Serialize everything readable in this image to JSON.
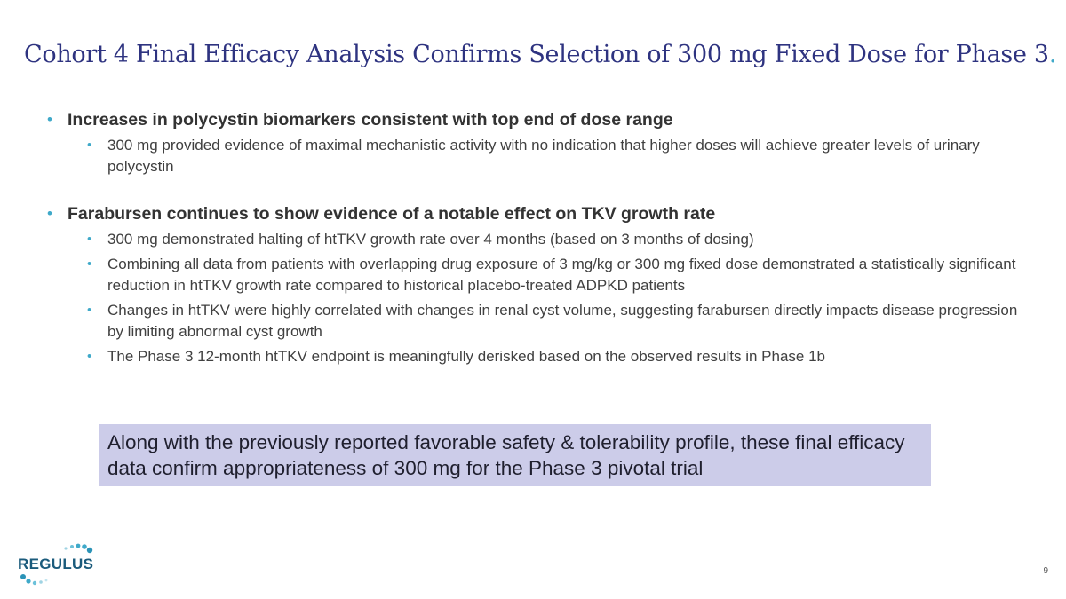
{
  "title": "Cohort 4 Final Efficacy Analysis Confirms Selection of 300 mg Fixed Dose for Phase 3",
  "title_dot": ".",
  "bullet_glyph": "•",
  "groups": [
    {
      "heading": "Increases in polycystin biomarkers consistent with top end of dose range",
      "items": [
        "300 mg provided evidence of maximal mechanistic activity with no indication that higher doses will achieve greater levels of urinary polycystin"
      ]
    },
    {
      "heading": "Farabursen continues to show evidence of a notable effect on TKV growth rate",
      "items": [
        "300 mg demonstrated halting of htTKV growth rate over 4 months (based on 3 months of dosing)",
        "Combining all data from patients with overlapping drug exposure of 3 mg/kg or 300 mg fixed dose demonstrated a statistically significant reduction in htTKV growth rate compared to historical placebo-treated ADPKD patients",
        "Changes in htTKV were highly correlated with changes in renal cyst volume, suggesting farabursen directly impacts disease progression by limiting abnormal cyst growth",
        "The Phase 3 12-month htTKV endpoint is meaningfully derisked based on the observed results in Phase 1b"
      ]
    }
  ],
  "callout": "Along with the previously reported favorable safety & tolerability profile, these final efficacy data confirm appropriateness of 300 mg for the Phase 3 pivotal trial",
  "logo_text": "REGULUS",
  "page_number": "9",
  "colors": {
    "title": "#2e3380",
    "accent": "#3fa9c9",
    "callout_bg": "#cccce9",
    "logo": "#1b5b7c"
  }
}
